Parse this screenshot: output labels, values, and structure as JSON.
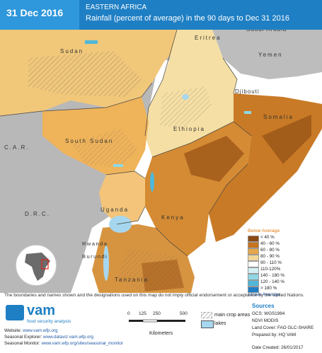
{
  "header": {
    "date": "31 Dec 2016",
    "region": "EASTERN AFRICA",
    "title": "Rainfall (percent of average) in the 90 days to Dec 31 2016"
  },
  "countries": {
    "sudan": "Sudan",
    "eritrea": "Eritrea",
    "yemen": "Yemen",
    "saudi": "Saudi Arabia",
    "djibouti": "Djibouti",
    "somalia": "Somalia",
    "ethiopia": "Ethiopia",
    "south_sudan": "South Sudan",
    "car": "C.A.R.",
    "drc": "D.R.C.",
    "uganda": "Uganda",
    "kenya": "Kenya",
    "rwanda": "Rwanda",
    "burundi": "Burundi",
    "tanzania": "Tanzania"
  },
  "legend": {
    "title": "Below Average",
    "items": [
      {
        "label": "< 40 %",
        "color": "#8a4a12"
      },
      {
        "label": "40 - 60 %",
        "color": "#c8731e"
      },
      {
        "label": "60 - 80 %",
        "color": "#e6a64a"
      },
      {
        "label": "80 - 90 %",
        "color": "#f3d79a"
      },
      {
        "label": "90 - 110 %",
        "color": "#ffffff"
      },
      {
        "label": "110-120%",
        "color": "#d4f0f4"
      },
      {
        "label": "140 - 180 %",
        "color": "#8ed8e6"
      },
      {
        "label": "120 - 140 %",
        "color": "#4fb8da"
      },
      {
        "label": "> 180 %",
        "color": "#1f7fc4"
      }
    ],
    "bottom": "Above Average"
  },
  "disclaimer": "The boundaries and names shown and the designations used on this map do not imply official endorsement or acceptance by the United Nations.",
  "footer": {
    "vam": "vam",
    "vam_sub": "food security analysis",
    "website_label": "Website:",
    "website": "www.vam.wfp.org",
    "explorer_label": "Seasonal Explorer:",
    "explorer": "www.dataviz.vam.wfp.org",
    "monitor_label": "Seasonal Monitor:",
    "monitor": "www.vam.wfp.org/sites/seasonal_monitor",
    "scale": [
      "0",
      "125",
      "250",
      "500"
    ],
    "km": "Kilometers",
    "crop": "main crop areas",
    "lakes": "lakes",
    "sources": "Sources",
    "gcs": "GCS: WGS1984",
    "ndvi": "NDVI MODIS",
    "landcover": "Land Cover: FAO GLC-SHARE",
    "prepared": "Prepared by: HQ VAM",
    "created": "Date Created: 26/01/2017"
  },
  "colors": {
    "header": "#1f7fc4",
    "date_box": "#2f97db",
    "sea": "#ffffff",
    "land_out": "#b5b5b5"
  }
}
